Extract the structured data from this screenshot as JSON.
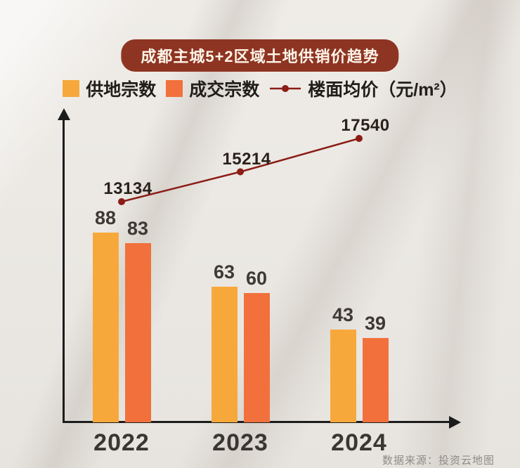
{
  "chart_data": {
    "type": "bar+line",
    "title": "成都主城5+2区域土地供销价趋势",
    "source": "数据来源：投资云地图",
    "categories": [
      "2022",
      "2023",
      "2024"
    ],
    "series": [
      {
        "name": "供地宗数",
        "type": "bar",
        "color": "#f7a83b",
        "values": [
          88,
          63,
          43
        ]
      },
      {
        "name": "成交宗数",
        "type": "bar",
        "color": "#f2703c",
        "values": [
          83,
          60,
          39
        ]
      },
      {
        "name": "楼面均价（元/m²）",
        "type": "line",
        "color": "#8b1d15",
        "values": [
          13134,
          15214,
          17540
        ]
      }
    ],
    "legend_position": "top",
    "grid": false,
    "bar_axis_range": [
      0,
      95
    ],
    "colors": {
      "title_badge_bg": "#8e3422",
      "title_text": "#fdf4e8",
      "axis": "#1c1c1c",
      "background": "#eae7e2",
      "value_label": "#3e3933",
      "price_label": "#2a211a"
    }
  }
}
